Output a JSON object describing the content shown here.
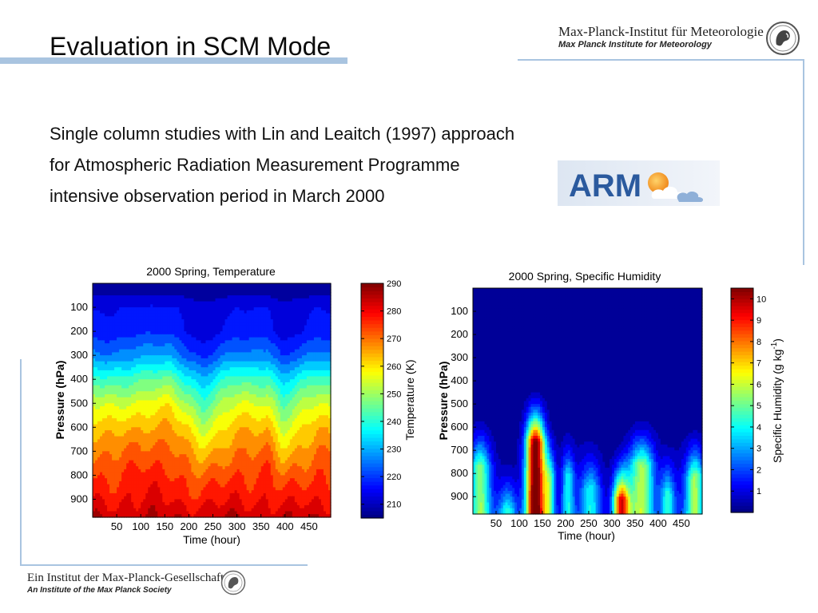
{
  "slide": {
    "title": "Evaluation in SCM Mode",
    "institute_de": "Max-Planck-Institut für Meteorologie",
    "institute_en": "Max Planck Institute for Meteorology",
    "lines": [
      "Single column studies with Lin and Leaitch (1997) approach",
      "for Atmospheric Radiation Measurement Programme",
      "intensive observation period in March 2000"
    ],
    "arm_logo_text": "ARM",
    "footer_de": "Ein Institut der Max-Planck-Gesellschaft",
    "footer_en": "An Institute of the Max Planck Society"
  },
  "colors": {
    "accent_rule": "#a9c4e0",
    "arm_blue": "#2b5a9e",
    "arm_bg": "#e8eef6"
  },
  "chart_data": [
    {
      "type": "heatmap",
      "title": "2000 Spring, Temperature",
      "xlabel": "Time (hour)",
      "ylabel": "Pressure (hPa)",
      "x_ticks": [
        50,
        100,
        150,
        200,
        250,
        300,
        350,
        400,
        450
      ],
      "y_ticks": [
        100,
        200,
        300,
        400,
        500,
        600,
        700,
        800,
        900
      ],
      "xlim": [
        0,
        495
      ],
      "ylim": [
        975,
        0
      ],
      "colorbar_label": "Temperature (K)",
      "colorbar_ticks": [
        210,
        220,
        230,
        240,
        250,
        260,
        270,
        280,
        290
      ],
      "colorbar_range": [
        205,
        290
      ],
      "colormap": "jet",
      "layers": [
        {
          "p": 25,
          "v": 207
        },
        {
          "p": 100,
          "v": 214
        },
        {
          "p": 200,
          "v": 216
        },
        {
          "p": 300,
          "v": 225
        },
        {
          "p": 400,
          "v": 240
        },
        {
          "p": 500,
          "v": 252
        },
        {
          "p": 600,
          "v": 261
        },
        {
          "p": 700,
          "v": 268
        },
        {
          "p": 800,
          "v": 274
        },
        {
          "p": 900,
          "v": 279
        },
        {
          "p": 975,
          "v": 284
        }
      ],
      "anomaly": {
        "t": [
          0,
          40,
          80,
          120,
          160,
          200,
          230,
          270,
          300,
          330,
          365,
          395,
          430,
          470,
          495
        ],
        "k": [
          2,
          1,
          3,
          5,
          6,
          -3,
          -9,
          -1,
          3,
          2,
          3,
          -8,
          -2,
          3,
          1
        ]
      }
    },
    {
      "type": "heatmap",
      "title": "2000 Spring, Specific Humidity",
      "xlabel": "Time (hour)",
      "ylabel": "Pressure (hPa)",
      "x_ticks": [
        50,
        100,
        150,
        200,
        250,
        300,
        350,
        400,
        450
      ],
      "y_ticks": [
        100,
        200,
        300,
        400,
        500,
        600,
        700,
        800,
        900
      ],
      "xlim": [
        0,
        495
      ],
      "ylim": [
        975,
        0
      ],
      "colorbar_label": "Specific Humidity (g kg-1)",
      "colorbar_ticks": [
        1,
        2,
        3,
        4,
        5,
        6,
        7,
        8,
        9,
        10
      ],
      "colorbar_range": [
        0,
        10.5
      ],
      "colormap": "jet",
      "peaks": [
        {
          "t": 15,
          "w": 22,
          "top": 500,
          "amp": 4.5
        },
        {
          "t": 75,
          "w": 20,
          "top": 700,
          "amp": 4
        },
        {
          "t": 135,
          "w": 20,
          "top": 400,
          "amp": 10.5
        },
        {
          "t": 165,
          "w": 14,
          "top": 550,
          "amp": 4
        },
        {
          "t": 205,
          "w": 14,
          "top": 550,
          "amp": 3.5
        },
        {
          "t": 255,
          "w": 22,
          "top": 600,
          "amp": 3
        },
        {
          "t": 320,
          "w": 18,
          "top": 650,
          "amp": 8.5
        },
        {
          "t": 365,
          "w": 28,
          "top": 500,
          "amp": 5
        },
        {
          "t": 420,
          "w": 16,
          "top": 620,
          "amp": 3.5
        },
        {
          "t": 480,
          "w": 20,
          "top": 550,
          "amp": 5
        }
      ]
    }
  ]
}
